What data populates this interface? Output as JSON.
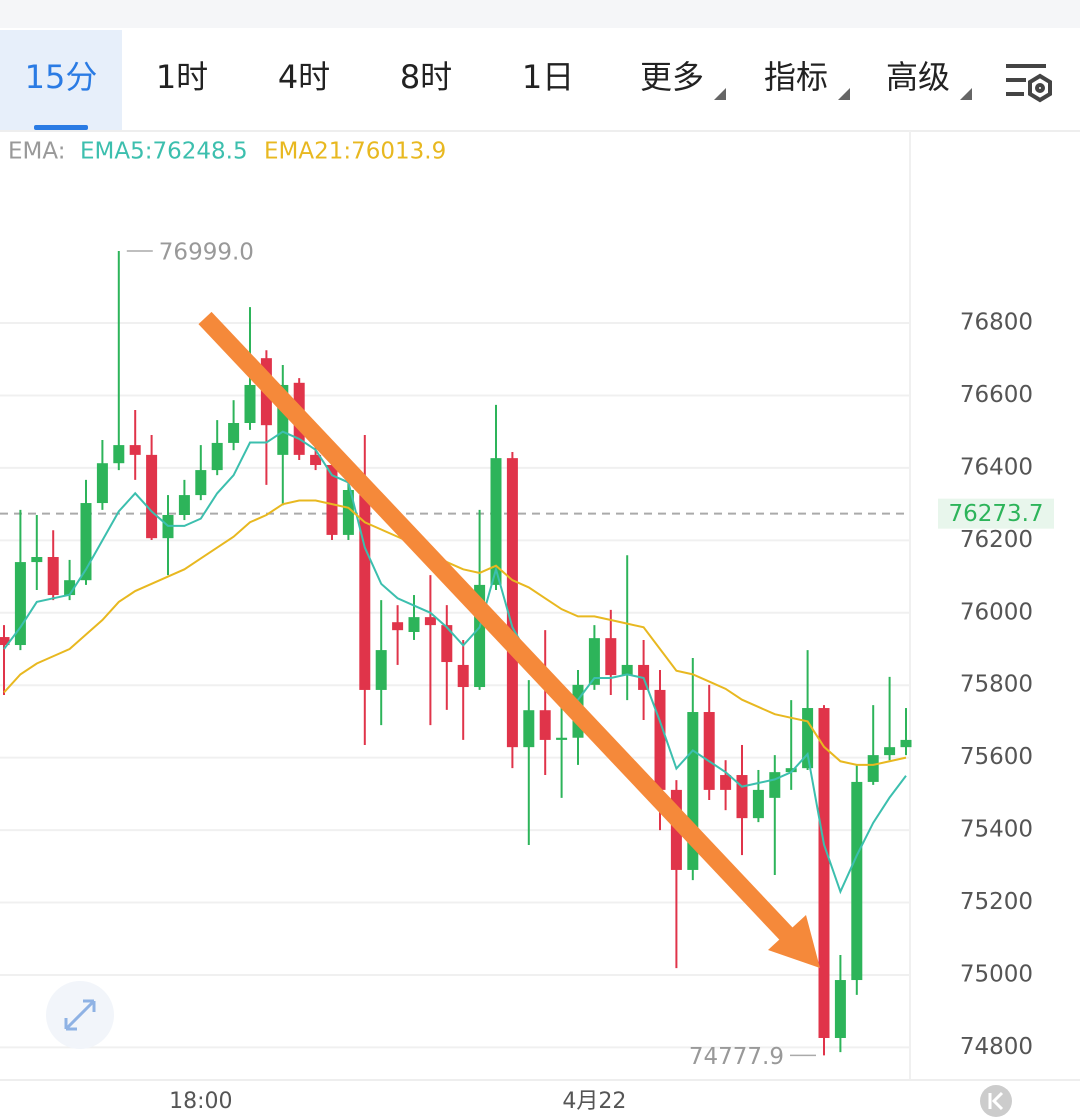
{
  "tabs": [
    "15分",
    "1时",
    "4时",
    "8时",
    "1日",
    "更多",
    "指标",
    "高级"
  ],
  "chart_data": {
    "type": "candlestick",
    "indicator_label": "EMA:",
    "categories": [
      null,
      null,
      null,
      null,
      null,
      null,
      null,
      null,
      null,
      null,
      null,
      null,
      "18:00",
      null,
      null,
      null,
      null,
      null,
      null,
      null,
      null,
      null,
      null,
      null,
      null,
      null,
      null,
      null,
      null,
      null,
      null,
      null,
      null,
      null,
      null,
      null,
      "4月22",
      null,
      null,
      null,
      null,
      null,
      null,
      null,
      null,
      null,
      null,
      null,
      null,
      null,
      null,
      null,
      null,
      null,
      null,
      null
    ],
    "open": [
      75933,
      75911,
      76140,
      76154,
      76049,
      76090,
      76303,
      76413,
      76463,
      76436,
      76206,
      76270,
      76325,
      76394,
      76469,
      76524,
      76703,
      76436,
      76635,
      76436,
      76408,
      76215,
      76325,
      75787,
      75974,
      75947,
      75988,
      75966,
      75856,
      75795,
      76077,
      76427,
      75629,
      75731,
      75649,
      75655,
      75801,
      75930,
      75828,
      75856,
      75787,
      75511,
      75290,
      75726,
      75552,
      75552,
      75433,
      75489,
      75560,
      75571,
      75737,
      74826,
      74986,
      75533,
      75607,
      75629
    ],
    "high": [
      75966,
      76284,
      76270,
      76228,
      76146,
      76367,
      76477,
      76999,
      76560,
      76491,
      76325,
      76367,
      76463,
      76532,
      76587,
      76844,
      76725,
      76684,
      76648,
      76477,
      76436,
      76394,
      76491,
      76035,
      76021,
      76049,
      76104,
      76021,
      75925,
      76284,
      76574,
      76444,
      75814,
      75952,
      75759,
      75842,
      75966,
      76008,
      76159,
      75925,
      75842,
      75538,
      75875,
      75801,
      75593,
      75635,
      75566,
      75607,
      75759,
      75897,
      75745,
      75055,
      75580,
      75745,
      75823,
      75737
    ],
    "low": [
      75773,
      75897,
      76063,
      76035,
      76035,
      76077,
      76284,
      76394,
      76367,
      76201,
      76104,
      76256,
      76311,
      76380,
      76449,
      76505,
      76353,
      76297,
      76422,
      76394,
      76201,
      76201,
      75635,
      75690,
      75856,
      75925,
      75690,
      75732,
      75649,
      75787,
      76063,
      75571,
      75359,
      75552,
      75489,
      75580,
      75787,
      75773,
      75759,
      75704,
      75400,
      75019,
      75262,
      75483,
      75455,
      75331,
      75422,
      75276,
      75511,
      75566,
      74777.9,
      74787,
      74945,
      75525,
      75593,
      75607
    ],
    "close": [
      75911,
      76140,
      76154,
      76049,
      76090,
      76303,
      76413,
      76463,
      76436,
      76206,
      76270,
      76325,
      76394,
      76469,
      76524,
      76629,
      76518,
      76629,
      76436,
      76408,
      76215,
      76339,
      75787,
      75897,
      75952,
      75988,
      75966,
      75864,
      75795,
      76077,
      76427,
      75629,
      75731,
      75649,
      75655,
      75801,
      75930,
      75828,
      75856,
      75787,
      75511,
      75290,
      75726,
      75511,
      75511,
      75433,
      75511,
      75560,
      75571,
      75737,
      74826,
      74986,
      75533,
      75607,
      75629,
      75649
    ],
    "up_color": "#2db45a",
    "down_color": "#e0344a",
    "series": [
      {
        "label": "EMA5:76248.5",
        "color": "#3cbfae",
        "values": [
          75900,
          75960,
          76030,
          76040,
          76050,
          76120,
          76200,
          76280,
          76330,
          76280,
          76240,
          76240,
          76260,
          76330,
          76380,
          76470,
          76470,
          76500,
          76480,
          76450,
          76380,
          76360,
          76180,
          76080,
          76040,
          76020,
          76000,
          75960,
          75910,
          75960,
          76120,
          75960,
          75880,
          75800,
          75750,
          75760,
          75820,
          75820,
          75830,
          75820,
          75700,
          75570,
          75620,
          75590,
          75560,
          75520,
          75530,
          75540,
          75560,
          75610,
          75360,
          75230,
          75330,
          75420,
          75490,
          75550
        ]
      },
      {
        "label": "EMA21:76013.9",
        "color": "#e8b820",
        "values": [
          75780,
          75830,
          75860,
          75880,
          75900,
          75940,
          75980,
          76030,
          76060,
          76080,
          76100,
          76120,
          76150,
          76180,
          76210,
          76250,
          76270,
          76300,
          76310,
          76310,
          76300,
          76290,
          76250,
          76230,
          76210,
          76190,
          76170,
          76140,
          76120,
          76110,
          76130,
          76090,
          76070,
          76040,
          76010,
          75990,
          75990,
          75980,
          75970,
          75960,
          75900,
          75840,
          75830,
          75810,
          75790,
          75760,
          75740,
          75720,
          75710,
          75700,
          75630,
          75590,
          75580,
          75580,
          75590,
          75600
        ]
      }
    ],
    "high_label": "76999.0",
    "low_label": "74777.9",
    "last_price": 76273.7,
    "ylim": [
      74710,
      77333
    ],
    "yticks": [
      74800,
      75000,
      75200,
      75400,
      75600,
      75800,
      76000,
      76200,
      76400,
      76600,
      76800
    ],
    "grid": true
  }
}
